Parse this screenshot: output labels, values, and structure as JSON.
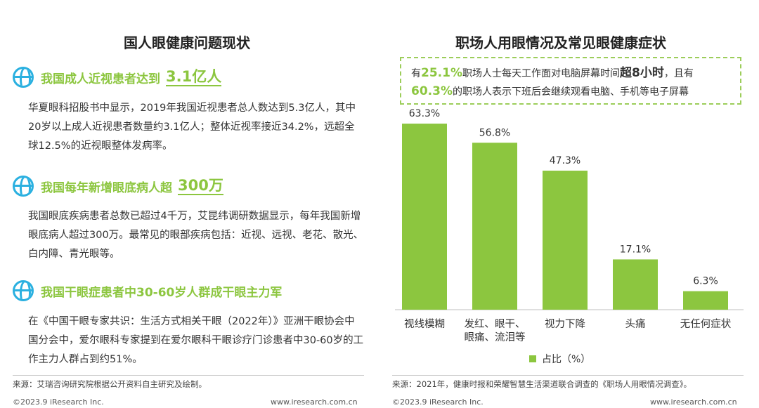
{
  "left": {
    "title": "国人眼健康问题现状",
    "sections": [
      {
        "icon": "globe-icon",
        "heading": "我国成人近视患者达到",
        "highlight": "3.1亿人",
        "body": "华夏眼科招股书中显示，2019年我国近视患者总人数达到5.3亿人，其中20岁以上成人近视患者数量约3.1亿人；整体近视率接近34.2%，远超全球12.5%的近视眼整体发病率。"
      },
      {
        "icon": "globe-icon",
        "heading": "我国每年新增眼底病人超",
        "highlight": "300万",
        "body": "我国眼底疾病患者总数已超过4千万，艾昆纬调研数据显示，每年我国新增眼底病人超过300万。最常见的眼部疾病包括：近视、远视、老花、散光、白内障、青光眼等。"
      },
      {
        "icon": "globe-icon",
        "heading": "我国干眼症患者中30-60岁人群成干眼主力军",
        "highlight": "",
        "body": "在《中国干眼专家共识：生活方式相关干眼（2022年）》亚洲干眼协会中国分会中，爱尔眼科专家提到在爱尔眼科干眼诊疗门诊患者中30-60岁的工作主力人群占到约51%。"
      }
    ],
    "source": "来源：艾瑞咨询研究院根据公开资料自主研究及绘制。",
    "footer_left": "©2023.9 iResearch Inc.",
    "footer_right": "www.iresearch.com.cn"
  },
  "right": {
    "title": "职场人用眼情况及常见眼健康症状",
    "callout": {
      "p1": "有",
      "v1": "25.1%",
      "p2": "职场人士每天工作面对电脑屏幕时间",
      "v2": "超8小时",
      "p3": "，且有",
      "v3": "60.3%",
      "p4": "的职场人表示下班后会继续观看电脑、手机等电子屏幕"
    },
    "legend": "占比（%）",
    "source": "来源：2021年，健康时报和荣耀智慧生活渠道联合调查的《职场人用眼情况调查》。",
    "footer_left": "©2023.9 iResearch Inc.",
    "footer_right": "www.iresearch.com.cn"
  },
  "colors": {
    "accent": "#8cc63f",
    "icon": "#2ab0e0"
  },
  "chart_data": {
    "type": "bar",
    "title": "职场人用眼情况及常见眼健康症状",
    "categories": [
      "视线模糊",
      "发红、眼干、眼痛、流泪等",
      "视力下降",
      "头痛",
      "无任何症状"
    ],
    "category_lines": [
      [
        "视线模糊"
      ],
      [
        "发红、眼干、",
        "眼痛、流泪等"
      ],
      [
        "视力下降"
      ],
      [
        "头痛"
      ],
      [
        "无任何症状"
      ]
    ],
    "series": [
      {
        "name": "占比（%）",
        "values": [
          63.3,
          56.8,
          47.3,
          17.1,
          6.3
        ]
      }
    ],
    "value_labels": [
      "63.3%",
      "56.8%",
      "47.3%",
      "17.1%",
      "6.3%"
    ],
    "ylim": [
      0,
      70
    ],
    "color": "#8cc63f",
    "legend_position": "bottom"
  }
}
